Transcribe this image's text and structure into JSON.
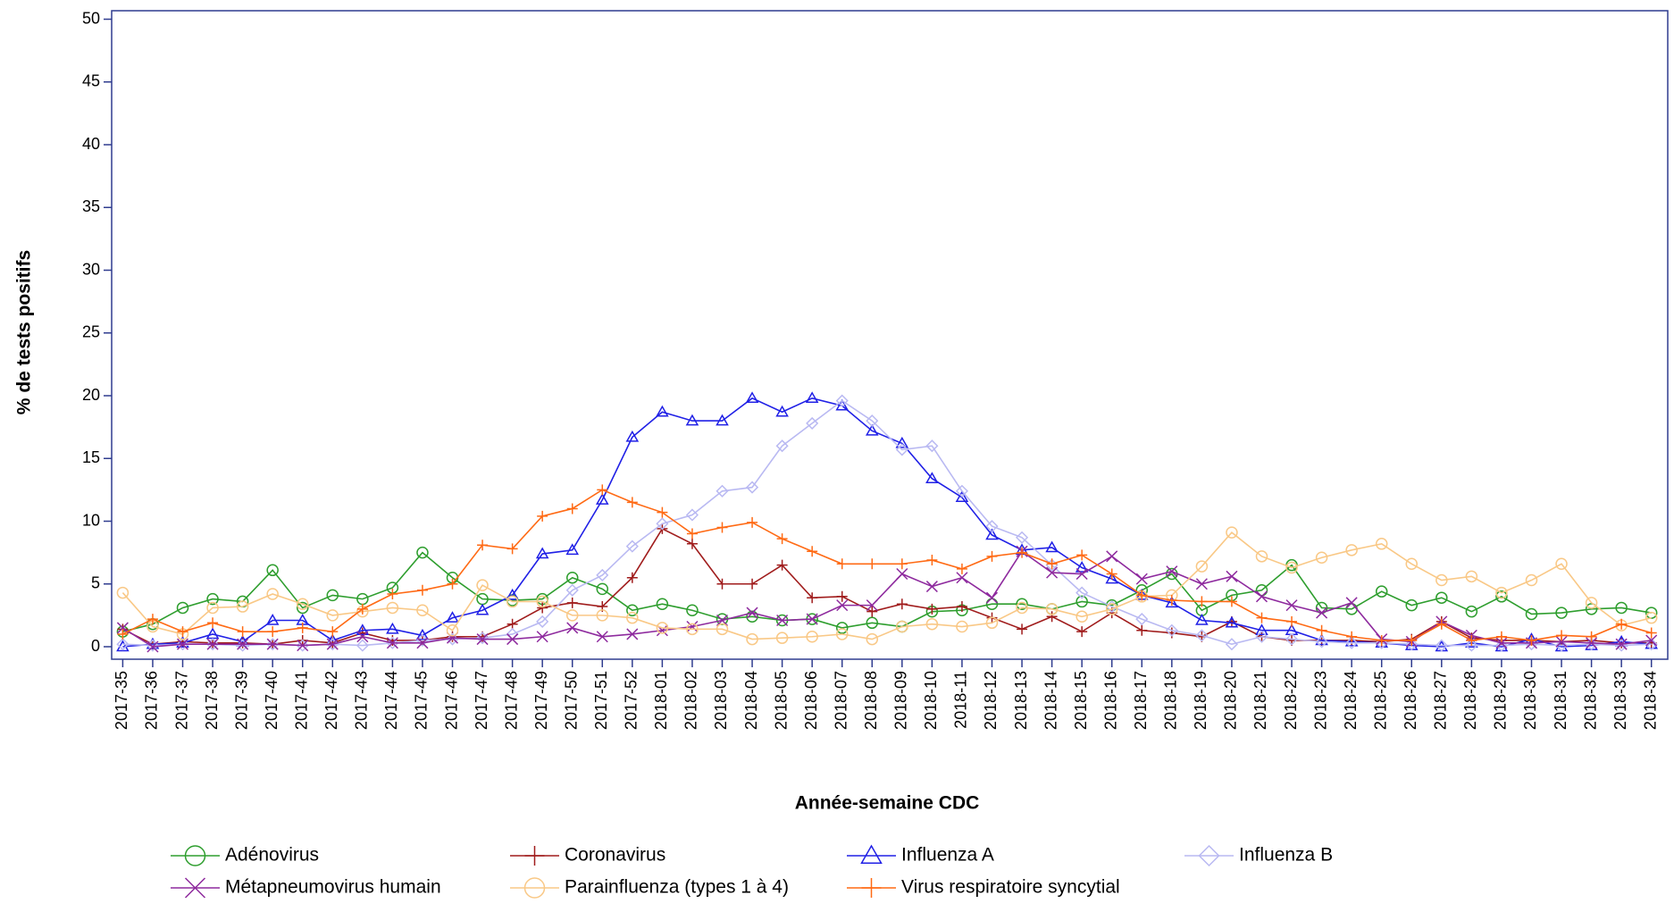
{
  "chart_data": {
    "type": "line",
    "xlabel": "Année-semaine CDC",
    "ylabel": "% de tests positifs",
    "categories": [
      "2017-35",
      "2017-36",
      "2017-37",
      "2017-38",
      "2017-39",
      "2017-40",
      "2017-41",
      "2017-42",
      "2017-43",
      "2017-44",
      "2017-45",
      "2017-46",
      "2017-47",
      "2017-48",
      "2017-49",
      "2017-50",
      "2017-51",
      "2017-52",
      "2018-01",
      "2018-02",
      "2018-03",
      "2018-04",
      "2018-05",
      "2018-06",
      "2018-07",
      "2018-08",
      "2018-09",
      "2018-10",
      "2018-11",
      "2018-12",
      "2018-13",
      "2018-14",
      "2018-15",
      "2018-16",
      "2018-17",
      "2018-18",
      "2018-19",
      "2018-20",
      "2018-21",
      "2018-22",
      "2018-23",
      "2018-24",
      "2018-25",
      "2018-26",
      "2018-27",
      "2018-28",
      "2018-29",
      "2018-30",
      "2018-31",
      "2018-32",
      "2018-33",
      "2018-34"
    ],
    "ylim": [
      0,
      50
    ],
    "yticks": [
      0,
      5,
      10,
      15,
      20,
      25,
      30,
      35,
      40,
      45,
      50
    ],
    "series": [
      {
        "name": "Adénovirus",
        "color": "#2e9e2e",
        "marker": "circle",
        "values": [
          1.2,
          1.8,
          3.1,
          3.8,
          3.6,
          6.1,
          3.1,
          4.1,
          3.8,
          4.7,
          7.5,
          5.5,
          3.8,
          3.7,
          3.8,
          5.5,
          4.6,
          2.9,
          3.4,
          2.9,
          2.2,
          2.4,
          2.1,
          2.2,
          1.5,
          1.9,
          1.6,
          2.8,
          2.9,
          3.4,
          3.4,
          3.0,
          3.6,
          3.3,
          4.5,
          5.8,
          2.9,
          4.1,
          4.5,
          6.5,
          3.1,
          3.0,
          4.4,
          3.3,
          3.9,
          2.8,
          4.0,
          2.6,
          2.7,
          3.0,
          3.1,
          2.7
        ]
      },
      {
        "name": "Coronavirus",
        "color": "#a01c1c",
        "marker": "plus",
        "values": [
          1.4,
          0.2,
          0.4,
          0.3,
          0.3,
          0.2,
          0.5,
          0.3,
          1.1,
          0.5,
          0.5,
          0.8,
          0.8,
          1.8,
          3.1,
          3.5,
          3.2,
          5.5,
          9.4,
          8.2,
          5.0,
          5.0,
          6.5,
          3.9,
          4.0,
          2.8,
          3.4,
          3.0,
          3.2,
          2.3,
          1.4,
          2.4,
          1.2,
          2.7,
          1.3,
          1.1,
          0.8,
          2.0,
          0.8,
          0.5,
          0.5,
          0.5,
          0.4,
          0.6,
          2.0,
          0.7,
          0.5,
          0.5,
          0.4,
          0.5,
          0.3,
          0.3
        ]
      },
      {
        "name": "Influenza A",
        "color": "#2020e6",
        "marker": "triangle",
        "values": [
          0.0,
          0.2,
          0.3,
          1.0,
          0.4,
          2.1,
          2.1,
          0.5,
          1.3,
          1.4,
          0.9,
          2.3,
          2.9,
          4.1,
          7.4,
          7.7,
          11.7,
          16.7,
          18.7,
          18.0,
          18.0,
          19.8,
          18.7,
          19.8,
          19.2,
          17.2,
          16.2,
          13.4,
          11.9,
          8.9,
          7.7,
          7.9,
          6.3,
          5.4,
          4.1,
          3.5,
          2.1,
          1.9,
          1.3,
          1.3,
          0.5,
          0.4,
          0.3,
          0.1,
          0.0,
          0.3,
          0.0,
          0.6,
          0.0,
          0.1,
          0.4,
          0.2
        ]
      },
      {
        "name": "Influenza B",
        "color": "#b9b9f2",
        "marker": "diamond",
        "values": [
          0.2,
          0.1,
          0.2,
          0.2,
          0.1,
          0.2,
          0.1,
          0.2,
          0.1,
          0.3,
          0.5,
          0.6,
          0.7,
          1.0,
          2.0,
          4.5,
          5.7,
          8.0,
          9.8,
          10.5,
          12.4,
          12.7,
          16.0,
          17.8,
          19.6,
          18.0,
          15.7,
          16.0,
          12.4,
          9.6,
          8.7,
          6.5,
          4.3,
          3.2,
          2.2,
          1.3,
          0.9,
          0.2,
          0.8,
          0.6,
          0.4,
          0.3,
          0.3,
          0.2,
          0.1,
          0.1,
          0.1,
          0.2,
          0.1,
          0.2,
          0.1,
          0.2
        ]
      },
      {
        "name": "Métapneumovirus humain",
        "color": "#8e2a9e",
        "marker": "cross",
        "values": [
          1.5,
          0.0,
          0.2,
          0.2,
          0.2,
          0.2,
          0.1,
          0.2,
          0.8,
          0.3,
          0.3,
          0.7,
          0.6,
          0.6,
          0.8,
          1.5,
          0.8,
          1.0,
          1.3,
          1.6,
          2.1,
          2.7,
          2.1,
          2.2,
          3.3,
          3.3,
          5.8,
          4.8,
          5.5,
          3.9,
          7.6,
          5.9,
          5.8,
          7.2,
          5.4,
          6.0,
          5.0,
          5.6,
          4.0,
          3.3,
          2.7,
          3.5,
          0.6,
          0.4,
          2.0,
          0.9,
          0.3,
          0.3,
          0.4,
          0.3,
          0.2,
          0.5
        ]
      },
      {
        "name": "Parainfluenza (types 1 à 4)",
        "color": "#f9c886",
        "marker": "circle",
        "values": [
          4.3,
          1.6,
          1.0,
          3.1,
          3.2,
          4.2,
          3.4,
          2.5,
          2.8,
          3.1,
          2.9,
          1.3,
          4.9,
          3.6,
          3.6,
          2.5,
          2.5,
          2.3,
          1.5,
          1.4,
          1.4,
          0.6,
          0.7,
          0.8,
          1.0,
          0.6,
          1.6,
          1.8,
          1.6,
          1.9,
          3.1,
          3.0,
          2.4,
          3.0,
          4.0,
          4.1,
          6.4,
          9.1,
          7.2,
          6.3,
          7.1,
          7.7,
          8.2,
          6.6,
          5.3,
          5.6,
          4.3,
          5.3,
          6.6,
          3.5,
          1.7,
          2.3
        ]
      },
      {
        "name": "Virus respiratoire syncytial",
        "color": "#ff6a14",
        "marker": "plus",
        "values": [
          1.0,
          2.2,
          1.2,
          1.9,
          1.2,
          1.2,
          1.5,
          1.2,
          3.0,
          4.2,
          4.5,
          5.0,
          8.1,
          7.8,
          10.4,
          11.0,
          12.5,
          11.5,
          10.7,
          9.0,
          9.5,
          9.9,
          8.6,
          7.6,
          6.6,
          6.6,
          6.6,
          6.9,
          6.2,
          7.2,
          7.5,
          6.6,
          7.3,
          5.8,
          4.1,
          3.7,
          3.6,
          3.6,
          2.3,
          2.0,
          1.3,
          0.8,
          0.5,
          0.5,
          1.8,
          0.5,
          0.8,
          0.5,
          0.9,
          0.8,
          1.8,
          1.1
        ]
      }
    ]
  }
}
